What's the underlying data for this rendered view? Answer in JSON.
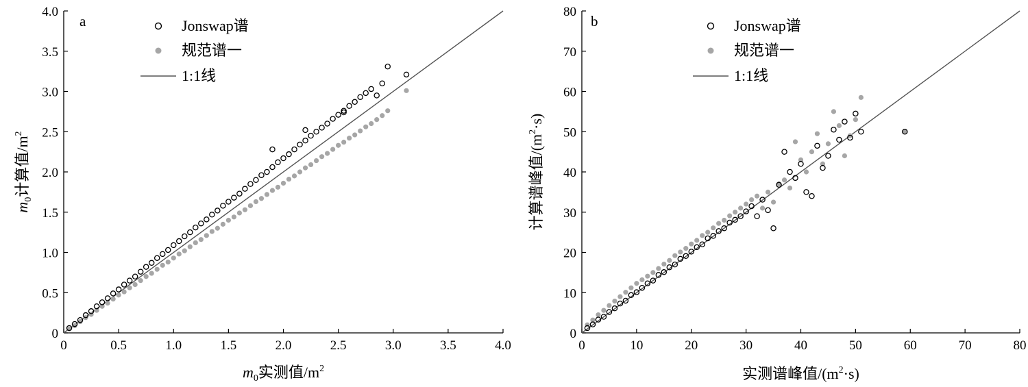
{
  "chart_data": [
    {
      "panel_label": "a",
      "type": "scatter",
      "xlabel": "m0实测值/m2",
      "xlabel_parts": {
        "var": "m",
        "sub": "0",
        "text": "实测值/m",
        "sup": "2"
      },
      "ylabel_parts": {
        "var": "m",
        "sub": "0",
        "text": "计算值/m",
        "sup": "2"
      },
      "xlim": [
        0,
        4.0
      ],
      "ylim": [
        0,
        4.0
      ],
      "xticks": [
        "0",
        "0.5",
        "1.0",
        "1.5",
        "2.0",
        "2.5",
        "3.0",
        "3.5",
        "4.0"
      ],
      "yticks": [
        "0",
        "0.5",
        "1.0",
        "1.5",
        "2.0",
        "2.5",
        "3.0",
        "3.5",
        "4.0"
      ],
      "legend": [
        "Jonswap谱",
        "规范谱一",
        "1:1线"
      ],
      "legend_position": "top-left",
      "reference_line": {
        "name": "1:1线",
        "from": [
          0,
          0
        ],
        "to": [
          4.0,
          4.0
        ]
      },
      "series": [
        {
          "name": "Jonswap谱",
          "marker": "open-circle",
          "color": "#000000",
          "trend": "approx. 1.08 × measured (slightly above 1:1 line)",
          "x": [
            0.05,
            0.1,
            0.15,
            0.2,
            0.25,
            0.3,
            0.35,
            0.4,
            0.45,
            0.5,
            0.55,
            0.6,
            0.65,
            0.7,
            0.75,
            0.8,
            0.85,
            0.9,
            0.95,
            1.0,
            1.05,
            1.1,
            1.15,
            1.2,
            1.25,
            1.3,
            1.35,
            1.4,
            1.45,
            1.5,
            1.55,
            1.6,
            1.65,
            1.7,
            1.75,
            1.8,
            1.85,
            1.9,
            1.95,
            2.0,
            2.05,
            2.1,
            2.15,
            2.2,
            2.25,
            2.3,
            2.35,
            2.4,
            2.45,
            2.5,
            2.55,
            2.6,
            2.65,
            2.7,
            2.75,
            2.8,
            2.85,
            2.9,
            2.95,
            3.12,
            2.55,
            2.2,
            1.9
          ],
          "y": [
            0.06,
            0.11,
            0.16,
            0.22,
            0.27,
            0.33,
            0.38,
            0.43,
            0.49,
            0.54,
            0.6,
            0.65,
            0.7,
            0.76,
            0.82,
            0.87,
            0.93,
            0.98,
            1.03,
            1.09,
            1.14,
            1.2,
            1.25,
            1.31,
            1.36,
            1.41,
            1.47,
            1.52,
            1.58,
            1.63,
            1.68,
            1.73,
            1.79,
            1.85,
            1.9,
            1.96,
            2.0,
            2.06,
            2.12,
            2.17,
            2.22,
            2.28,
            2.34,
            2.39,
            2.45,
            2.5,
            2.55,
            2.6,
            2.66,
            2.71,
            2.76,
            2.82,
            2.87,
            2.93,
            2.98,
            3.03,
            2.95,
            3.1,
            3.31,
            3.21,
            2.74,
            2.52,
            2.28
          ]
        },
        {
          "name": "规范谱一",
          "marker": "filled-circle",
          "color": "#a6a6a6",
          "trend": "approx. 0.93 × measured (slightly below 1:1 line)",
          "x": [
            0.05,
            0.1,
            0.15,
            0.2,
            0.25,
            0.3,
            0.35,
            0.4,
            0.45,
            0.5,
            0.55,
            0.6,
            0.65,
            0.7,
            0.75,
            0.8,
            0.85,
            0.9,
            0.95,
            1.0,
            1.05,
            1.1,
            1.15,
            1.2,
            1.25,
            1.3,
            1.35,
            1.4,
            1.45,
            1.5,
            1.55,
            1.6,
            1.65,
            1.7,
            1.75,
            1.8,
            1.85,
            1.9,
            1.95,
            2.0,
            2.05,
            2.1,
            2.15,
            2.2,
            2.25,
            2.3,
            2.35,
            2.4,
            2.45,
            2.5,
            2.55,
            2.6,
            2.65,
            2.7,
            2.75,
            2.8,
            2.85,
            2.9,
            2.95,
            3.12
          ],
          "y": [
            0.05,
            0.09,
            0.14,
            0.19,
            0.23,
            0.28,
            0.33,
            0.37,
            0.42,
            0.47,
            0.51,
            0.56,
            0.6,
            0.65,
            0.7,
            0.74,
            0.79,
            0.84,
            0.88,
            0.93,
            0.98,
            1.02,
            1.07,
            1.12,
            1.16,
            1.21,
            1.26,
            1.3,
            1.35,
            1.4,
            1.44,
            1.49,
            1.53,
            1.58,
            1.63,
            1.67,
            1.72,
            1.77,
            1.81,
            1.86,
            1.91,
            1.95,
            2.0,
            2.05,
            2.09,
            2.14,
            2.19,
            2.23,
            2.28,
            2.33,
            2.37,
            2.42,
            2.46,
            2.51,
            2.56,
            2.6,
            2.65,
            2.7,
            2.76,
            3.01
          ]
        }
      ]
    },
    {
      "panel_label": "b",
      "type": "scatter",
      "xlabel": "实测谱峰值/(m2·s)",
      "ylabel": "计算谱峰值/(m2·s)",
      "xlabel_parts": {
        "text": "实测谱峰值/(m",
        "sup": "2",
        "tail": "·s)"
      },
      "ylabel_parts": {
        "text": "计算谱峰值/(m",
        "sup": "2",
        "tail": "·s)"
      },
      "xlim": [
        0,
        80
      ],
      "ylim": [
        0,
        80
      ],
      "xticks": [
        "0",
        "10",
        "20",
        "30",
        "40",
        "50",
        "60",
        "70",
        "80"
      ],
      "yticks": [
        "0",
        "10",
        "20",
        "30",
        "40",
        "50",
        "60",
        "70",
        "80"
      ],
      "legend": [
        "Jonswap谱",
        "规范谱一",
        "1:1线"
      ],
      "legend_position": "top-left",
      "reference_line": {
        "name": "1:1线",
        "from": [
          0,
          0
        ],
        "to": [
          80,
          80
        ]
      },
      "series": [
        {
          "name": "Jonswap谱",
          "marker": "open-circle",
          "color": "#000000",
          "trend": "dense cloud along 1:1 line, wider scatter above 30",
          "x": [
            1,
            2,
            3,
            4,
            5,
            6,
            7,
            8,
            9,
            10,
            11,
            12,
            13,
            14,
            15,
            16,
            17,
            18,
            19,
            20,
            21,
            22,
            23,
            24,
            25,
            26,
            27,
            28,
            29,
            30,
            31,
            32,
            33,
            34,
            35,
            36,
            37,
            38,
            39,
            40,
            41,
            42,
            43,
            44,
            45,
            46,
            47,
            48,
            49,
            50,
            51,
            59
          ],
          "y": [
            1.2,
            2.1,
            3.3,
            4.0,
            5.2,
            6.1,
            7.3,
            8.0,
            9.4,
            10.1,
            11.2,
            12.3,
            13.0,
            14.4,
            15.1,
            16.3,
            17.0,
            18.4,
            19.1,
            20.2,
            21.3,
            22.0,
            23.5,
            24.1,
            25.3,
            26.0,
            27.4,
            28.1,
            29.0,
            30.2,
            31.5,
            29.0,
            33.1,
            30.5,
            26.0,
            36.8,
            45.0,
            40.0,
            38.5,
            42.0,
            35.0,
            34.0,
            46.5,
            41.0,
            44.0,
            50.5,
            48.0,
            52.5,
            48.5,
            54.5,
            50.0,
            50.0
          ]
        },
        {
          "name": "规范谱一",
          "marker": "filled-circle",
          "color": "#a6a6a6",
          "trend": "dense cloud along 1:1 line, slightly above at low values",
          "x": [
            1,
            2,
            3,
            4,
            5,
            6,
            7,
            8,
            9,
            10,
            11,
            12,
            13,
            14,
            15,
            16,
            17,
            18,
            19,
            20,
            21,
            22,
            23,
            24,
            25,
            26,
            27,
            28,
            29,
            30,
            31,
            32,
            33,
            34,
            35,
            36,
            37,
            38,
            39,
            40,
            41,
            42,
            43,
            44,
            45,
            46,
            47,
            48,
            49,
            50,
            51,
            59
          ],
          "y": [
            2.0,
            3.2,
            4.5,
            5.6,
            6.8,
            7.9,
            9.0,
            10.1,
            11.2,
            12.3,
            13.2,
            14.1,
            15.0,
            16.0,
            17.1,
            18.0,
            19.2,
            20.1,
            21.0,
            22.1,
            23.0,
            24.2,
            25.0,
            26.1,
            27.2,
            28.0,
            29.1,
            30.0,
            31.0,
            32.0,
            33.1,
            34.0,
            31.0,
            35.0,
            32.5,
            37.0,
            38.0,
            36.0,
            47.5,
            43.0,
            40.0,
            45.0,
            49.5,
            42.0,
            47.0,
            55.0,
            51.5,
            44.0,
            49.0,
            53.0,
            58.5,
            50.0
          ]
        }
      ]
    }
  ]
}
